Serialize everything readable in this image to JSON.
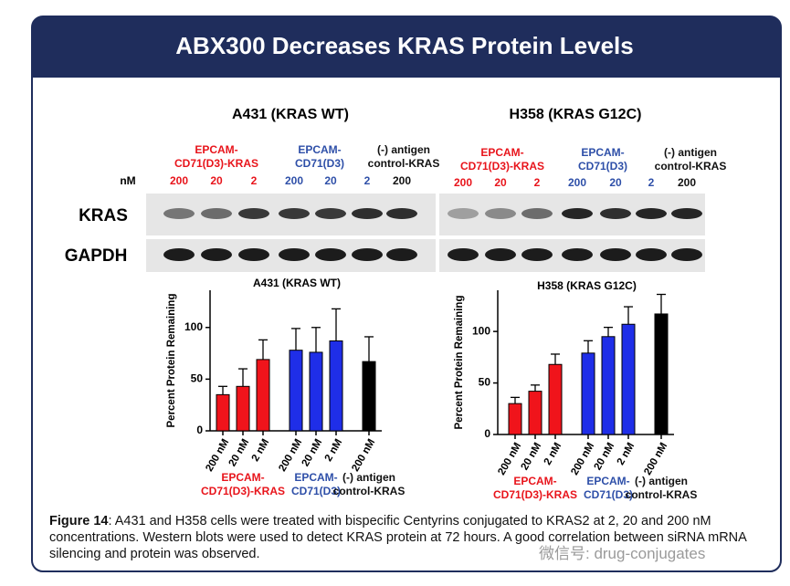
{
  "header": {
    "title": "ABX300 Decreases KRAS Protein Levels"
  },
  "unit_label": "nM",
  "row_labels": [
    "KRAS",
    "GAPDH"
  ],
  "blots": [
    {
      "title": "A431 (KRAS WT)",
      "groups": [
        {
          "label": "EPCAM-\nCD71(D3)-KRAS",
          "color": "#e8141b"
        },
        {
          "label": "EPCAM-\nCD71(D3)",
          "color": "#2e4fa8"
        },
        {
          "label": "(-) antigen\ncontrol-KRAS",
          "color": "#111111"
        }
      ],
      "doses": [
        {
          "label": "200",
          "color": "#e8141b"
        },
        {
          "label": "20",
          "color": "#e8141b"
        },
        {
          "label": "2",
          "color": "#e8141b"
        },
        {
          "label": "200",
          "color": "#2e4fa8"
        },
        {
          "label": "20",
          "color": "#2e4fa8"
        },
        {
          "label": "2",
          "color": "#2e4fa8"
        },
        {
          "label": "200",
          "color": "#111111"
        }
      ]
    },
    {
      "title": "H358 (KRAS G12C)",
      "groups": [
        {
          "label": "EPCAM-\nCD71(D3)-KRAS",
          "color": "#e8141b"
        },
        {
          "label": "EPCAM-\nCD71(D3)",
          "color": "#2e4fa8"
        },
        {
          "label": "(-) antigen\ncontrol-KRAS",
          "color": "#111111"
        }
      ],
      "doses": [
        {
          "label": "200",
          "color": "#e8141b"
        },
        {
          "label": "20",
          "color": "#e8141b"
        },
        {
          "label": "2",
          "color": "#e8141b"
        },
        {
          "label": "200",
          "color": "#2e4fa8"
        },
        {
          "label": "20",
          "color": "#2e4fa8"
        },
        {
          "label": "2",
          "color": "#2e4fa8"
        },
        {
          "label": "200",
          "color": "#111111"
        }
      ]
    }
  ],
  "chart_data": [
    {
      "type": "bar",
      "title": "A431 (KRAS WT)",
      "y_label": "Percent Protein Remaining",
      "categories": [
        "200 nM",
        "20 nM",
        "2 nM",
        "200 nM",
        "20 nM",
        "2 nM",
        "200 nM"
      ],
      "series": [
        {
          "name": "EPCAM-\nCD71(D3)-KRAS",
          "color": "#f0141b",
          "values": [
            35,
            43,
            69,
            null,
            null,
            null,
            null
          ],
          "errors": [
            8,
            17,
            19,
            null,
            null,
            null,
            null
          ]
        },
        {
          "name": "EPCAM-\nCD71(D3)",
          "color": "#1f2ee8",
          "values": [
            null,
            null,
            null,
            78,
            76,
            87,
            null
          ],
          "errors": [
            null,
            null,
            null,
            21,
            24,
            31,
            null
          ]
        },
        {
          "name": "(-) antigen\ncontrol-KRAS",
          "color": "#000000",
          "values": [
            null,
            null,
            null,
            null,
            null,
            null,
            67
          ],
          "errors": [
            null,
            null,
            null,
            null,
            null,
            null,
            24
          ]
        }
      ],
      "ylim": [
        0,
        136
      ],
      "yticks": [
        0,
        50,
        100
      ]
    },
    {
      "type": "bar",
      "title": "H358 (KRAS G12C)",
      "y_label": "Percent Protein Remaining",
      "categories": [
        "200 nM",
        "20 nM",
        "2 nM",
        "200 nM",
        "20 nM",
        "2 nM",
        "200 nM"
      ],
      "series": [
        {
          "name": "EPCAM-\nCD71(D3)-KRAS",
          "color": "#f0141b",
          "values": [
            30,
            42,
            68,
            null,
            null,
            null,
            null
          ],
          "errors": [
            6,
            6,
            10,
            null,
            null,
            null,
            null
          ]
        },
        {
          "name": "EPCAM-\nCD71(D3)",
          "color": "#1f2ee8",
          "values": [
            null,
            null,
            null,
            79,
            95,
            107,
            null
          ],
          "errors": [
            null,
            null,
            null,
            12,
            9,
            17,
            null
          ]
        },
        {
          "name": "(-) antigen\ncontrol-KRAS",
          "color": "#000000",
          "values": [
            null,
            null,
            null,
            null,
            null,
            null,
            117
          ],
          "errors": [
            null,
            null,
            null,
            null,
            null,
            null,
            19
          ]
        }
      ],
      "ylim": [
        0,
        140
      ],
      "yticks": [
        0,
        50,
        100
      ]
    }
  ],
  "caption": {
    "label": "Figure 14",
    "text": ": A431 and H358 cells were treated with bispecific Centyrins conjugated to KRAS2 at 2, 20 and 200 nM concentrations. Western blots were used to detect KRAS protein at 72 hours. A good correlation between siRNA mRNA silencing and protein was observed."
  },
  "watermark": "微信号: drug-conjugates"
}
